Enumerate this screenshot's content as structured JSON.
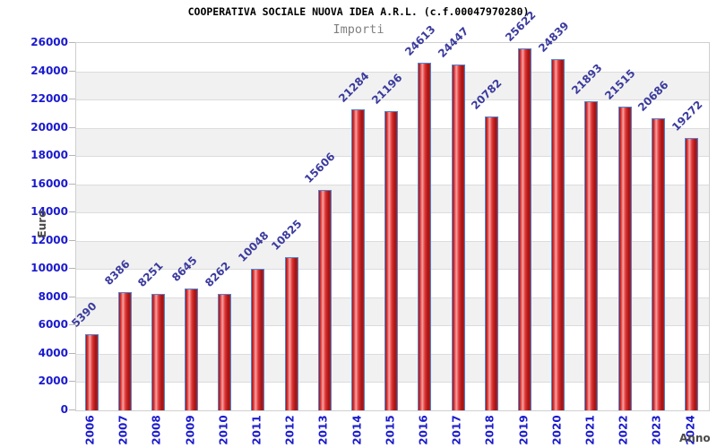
{
  "chart_data": {
    "type": "bar",
    "title": "COOPERATIVA SOCIALE NUOVA IDEA A.R.L. (c.f.00047970280)",
    "subtitle": "Importi",
    "xlabel": "Anno",
    "ylabel": "Euro",
    "categories": [
      "2006",
      "2007",
      "2008",
      "2009",
      "2010",
      "2011",
      "2012",
      "2013",
      "2014",
      "2015",
      "2016",
      "2017",
      "2018",
      "2019",
      "2020",
      "2021",
      "2022",
      "2023",
      "2024"
    ],
    "values": [
      5390,
      8386,
      8251,
      8645,
      8262,
      10048,
      10825,
      15606,
      21284,
      21196,
      24613,
      24447,
      20782,
      25622,
      24839,
      21893,
      21515,
      20686,
      19272
    ],
    "ylim": [
      0,
      26000
    ],
    "ytick_step": 2000,
    "yticks": [
      0,
      2000,
      4000,
      6000,
      8000,
      10000,
      12000,
      14000,
      16000,
      18000,
      20000,
      22000,
      24000,
      26000
    ],
    "legend": "none",
    "grid": "alternating-horizontal-bands",
    "bar_label_rotation_deg": -45,
    "x_label_rotation_deg": -90,
    "colors": {
      "tick_text": "#1a1ace",
      "bar_value_text": "#3b3b9e",
      "axis_name_text": "#4a4a4a",
      "title_text": "#000000",
      "subtitle_text": "#808080",
      "bar_border": "#4f86d2",
      "bar_red_dark": "#9e1414",
      "bar_red_mid": "#dd3333",
      "bar_red_highlight": "#f4a6a6",
      "band_gray": "#f1f1f1",
      "band_white": "#ffffff",
      "grid_line": "#dcdcdc",
      "plot_border": "#cfcfcf"
    }
  }
}
